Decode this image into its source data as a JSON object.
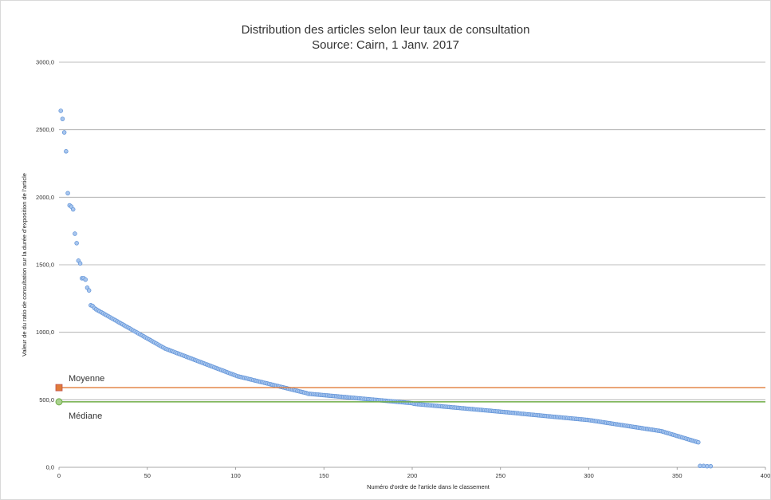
{
  "chart_data": {
    "type": "scatter",
    "title": "Distribution des articles selon leur taux de consultation",
    "subtitle": "Source: Cairn, 1 Janv. 2017",
    "xlabel": "Numéro d'ordre de l'article dans le classement",
    "ylabel": "Valeur de du ratio de consultation sur la durée d'exposition de l'article",
    "xlim": [
      0,
      400
    ],
    "ylim": [
      0,
      3000
    ],
    "x_ticks": [
      "0",
      "50",
      "100",
      "150",
      "200",
      "250",
      "300",
      "350",
      "400"
    ],
    "y_ticks": [
      "0,0",
      "500,0",
      "1000,0",
      "1500,0",
      "2000,0",
      "2500,0",
      "3000,0"
    ],
    "grid": "horizontal",
    "series": [
      {
        "marker_color": "#5b8fd6",
        "points": [
          [
            1,
            2640
          ],
          [
            2,
            2580
          ],
          [
            3,
            2480
          ],
          [
            4,
            2340
          ],
          [
            5,
            2030
          ],
          [
            6,
            1940
          ],
          [
            7,
            1930
          ],
          [
            8,
            1910
          ],
          [
            9,
            1730
          ],
          [
            10,
            1660
          ],
          [
            11,
            1530
          ],
          [
            12,
            1510
          ],
          [
            13,
            1400
          ],
          [
            14,
            1400
          ],
          [
            15,
            1390
          ],
          [
            16,
            1330
          ],
          [
            17,
            1310
          ],
          [
            18,
            1200
          ],
          [
            19,
            1195
          ],
          [
            20,
            1180
          ]
        ],
        "curve_segments": [
          {
            "x_start": 21,
            "x_end": 60,
            "y_start": 1170,
            "y_end": 880
          },
          {
            "x_start": 61,
            "x_end": 100,
            "y_start": 875,
            "y_end": 680
          },
          {
            "x_start": 101,
            "x_end": 140,
            "y_start": 675,
            "y_end": 550
          },
          {
            "x_start": 141,
            "x_end": 200,
            "y_start": 545,
            "y_end": 475
          },
          {
            "x_start": 201,
            "x_end": 260,
            "y_start": 470,
            "y_end": 400
          },
          {
            "x_start": 261,
            "x_end": 300,
            "y_start": 398,
            "y_end": 350
          },
          {
            "x_start": 301,
            "x_end": 340,
            "y_start": 348,
            "y_end": 270
          },
          {
            "x_start": 341,
            "x_end": 362,
            "y_start": 268,
            "y_end": 185
          }
        ],
        "tail_points": [
          [
            363,
            10
          ],
          [
            365,
            10
          ],
          [
            367,
            8
          ],
          [
            369,
            8
          ]
        ]
      }
    ],
    "reference_lines": [
      {
        "label": "Moyenne",
        "y": 590,
        "color": "#e07b39",
        "marker": "square"
      },
      {
        "label": "Médiane",
        "y": 485,
        "color": "#70ad47",
        "marker": "circle"
      }
    ]
  }
}
